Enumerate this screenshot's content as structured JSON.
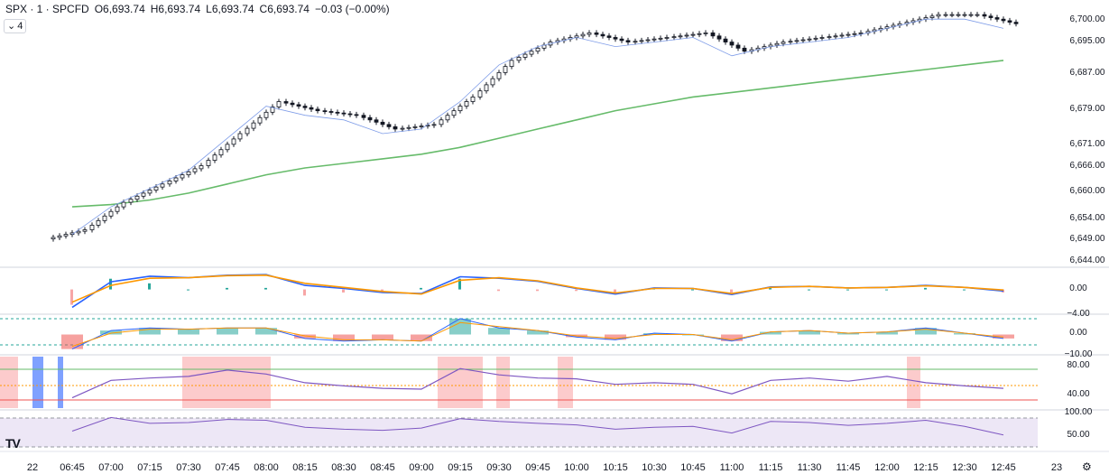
{
  "legend": {
    "symbol": "SPX · 1 · SPCFD",
    "o_label": "O",
    "o_value": "6,693.74",
    "h_label": "H",
    "h_value": "6,693.74",
    "l_label": "L",
    "l_value": "6,693.74",
    "c_label": "C",
    "c_value": "6,693.74",
    "change": "−0.03 (−0.00%)"
  },
  "indicators_badge": {
    "chevron": "⌄",
    "count": "4"
  },
  "logo_text": "TV",
  "settings_icon": "gear-icon",
  "colors": {
    "candle": "#131722",
    "ma_slow": "#66bb6a",
    "ma_fast": "#7e9ce8",
    "macd_line": "#2962ff",
    "signal_line": "#ff9800",
    "hist_up": "#26a69a",
    "hist_down": "#f7a6a6",
    "rsi": "#7e57c2",
    "band_fill": "#ede7f6",
    "red_zone": "#f77c80",
    "blue_zone": "#2962ff"
  },
  "chart_data": [
    {
      "type": "line",
      "name": "price",
      "x": [
        "06:45",
        "07:00",
        "07:15",
        "07:30",
        "07:45",
        "08:00",
        "08:15",
        "08:30",
        "08:45",
        "09:00",
        "09:15",
        "09:30",
        "09:45",
        "10:00",
        "10:15",
        "10:30",
        "10:45",
        "11:00",
        "11:15",
        "11:30",
        "11:45",
        "12:00",
        "12:15",
        "12:30",
        "12:45"
      ],
      "close": [
        6651,
        6657,
        6661,
        6665,
        6672,
        6679,
        6677,
        6676,
        6673,
        6674,
        6680,
        6688,
        6692,
        6694,
        6692,
        6693,
        6694,
        6690,
        6692,
        6693,
        6694,
        6696,
        6698,
        6698,
        6696
      ],
      "ma_slow": [
        6656,
        6656.5,
        6657.5,
        6659,
        6661,
        6663,
        6664.5,
        6665.5,
        6666.5,
        6667.5,
        6669,
        6671,
        6673,
        6675,
        6677,
        6678.5,
        6680,
        6681,
        6682,
        6683,
        6684,
        6685,
        6686,
        6687,
        6688
      ],
      "y_ticks": [
        "6,700.00",
        "6,695.00",
        "6,687.00",
        "6,679.00",
        "6,671.00",
        "6,666.00",
        "6,660.00",
        "6,654.00",
        "6,649.00",
        "6,644.00"
      ],
      "ylim": [
        6644,
        6700
      ]
    },
    {
      "type": "line",
      "name": "macd",
      "x": [
        "06:45",
        "07:00",
        "07:15",
        "07:30",
        "07:45",
        "08:00",
        "08:15",
        "08:30",
        "08:45",
        "09:00",
        "09:15",
        "09:30",
        "09:45",
        "10:00",
        "10:15",
        "10:30",
        "10:45",
        "11:00",
        "11:15",
        "11:30",
        "11:45",
        "12:00",
        "12:15",
        "12:30",
        "12:45"
      ],
      "macd": [
        -3.5,
        1.5,
        2.6,
        2.3,
        2.8,
        2.9,
        0.8,
        0.2,
        -0.6,
        -0.8,
        2.5,
        2.2,
        1.6,
        0.2,
        -0.9,
        0.3,
        0.2,
        -1.0,
        0.5,
        0.6,
        0.3,
        0.4,
        0.8,
        0.4,
        -0.3
      ],
      "signal": [
        -2.5,
        0.8,
        2.2,
        2.3,
        2.7,
        2.8,
        1.2,
        0.4,
        -0.4,
        -0.9,
        1.8,
        2.3,
        1.7,
        0.3,
        -0.7,
        0.2,
        0.2,
        -0.8,
        0.4,
        0.6,
        0.3,
        0.4,
        0.7,
        0.4,
        -0.1
      ],
      "y_ticks": [
        "0.00",
        "−4.00"
      ],
      "ylim": [
        -4.5,
        4
      ]
    },
    {
      "type": "line",
      "name": "oscillator",
      "x": [
        "06:45",
        "07:00",
        "07:15",
        "07:30",
        "07:45",
        "08:00",
        "08:15",
        "08:30",
        "08:45",
        "09:00",
        "09:15",
        "09:30",
        "09:45",
        "10:00",
        "10:15",
        "10:30",
        "10:45",
        "11:00",
        "11:15",
        "11:30",
        "11:45",
        "12:00",
        "12:15",
        "12:30",
        "12:45"
      ],
      "line1": [
        -11,
        3,
        5,
        4,
        5,
        5,
        -3,
        -5,
        -4,
        -5,
        12,
        5,
        3,
        -2,
        -4,
        1,
        0,
        -5,
        2,
        3,
        1,
        2,
        5,
        1,
        -3
      ],
      "line2": [
        -9,
        1,
        4,
        4,
        5,
        5,
        -1,
        -4,
        -4,
        -5,
        9,
        6,
        3,
        -1,
        -3,
        0,
        0,
        -4,
        2,
        3,
        1,
        2,
        4,
        1,
        -2
      ],
      "y_ticks": [
        "0.00",
        "−10.00"
      ],
      "ylim": [
        -14,
        14
      ]
    },
    {
      "type": "line",
      "name": "stochastic-band",
      "x": [
        "06:45",
        "07:00",
        "07:15",
        "07:30",
        "07:45",
        "08:00",
        "08:15",
        "08:30",
        "08:45",
        "09:00",
        "09:15",
        "09:30",
        "09:45",
        "10:00",
        "10:15",
        "10:30",
        "10:45",
        "11:00",
        "11:15",
        "11:30",
        "11:45",
        "12:00",
        "12:15",
        "12:30",
        "12:45"
      ],
      "values": [
        33,
        55,
        58,
        60,
        68,
        63,
        52,
        48,
        45,
        44,
        70,
        62,
        58,
        57,
        50,
        52,
        50,
        38,
        55,
        58,
        54,
        60,
        52,
        48,
        45
      ],
      "y_ticks": [
        "80.00",
        "40.00"
      ],
      "ylim": [
        20,
        85
      ]
    },
    {
      "type": "line",
      "name": "rsi",
      "x": [
        "06:45",
        "07:00",
        "07:15",
        "07:30",
        "07:45",
        "08:00",
        "08:15",
        "08:30",
        "08:45",
        "09:00",
        "09:15",
        "09:30",
        "09:45",
        "10:00",
        "10:15",
        "10:30",
        "10:45",
        "11:00",
        "11:15",
        "11:30",
        "11:45",
        "12:00",
        "12:15",
        "12:30",
        "12:45"
      ],
      "values": [
        50,
        85,
        70,
        72,
        80,
        78,
        60,
        55,
        52,
        58,
        82,
        75,
        70,
        66,
        55,
        60,
        62,
        45,
        75,
        72,
        65,
        70,
        78,
        62,
        40
      ],
      "y_ticks": [
        "100.00",
        "50.00"
      ],
      "ylim": [
        0,
        100
      ]
    }
  ],
  "time_axis": [
    "22",
    "06:45",
    "07:00",
    "07:15",
    "07:30",
    "07:45",
    "08:00",
    "08:15",
    "08:30",
    "08:45",
    "09:00",
    "09:15",
    "09:30",
    "09:45",
    "10:00",
    "10:15",
    "10:30",
    "10:45",
    "11:00",
    "11:15",
    "11:30",
    "11:45",
    "12:00",
    "12:15",
    "12:30",
    "12:45",
    "23"
  ]
}
